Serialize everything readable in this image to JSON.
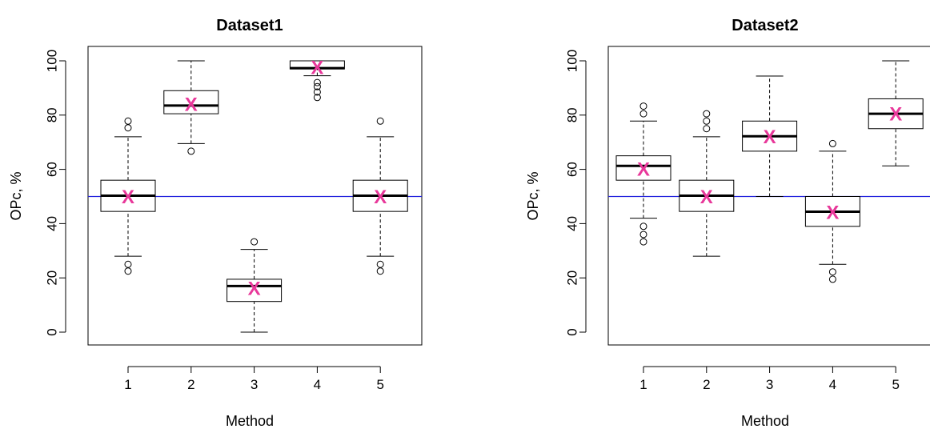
{
  "chart_data": [
    {
      "type": "boxplot",
      "title": "Dataset1",
      "xlabel": "Method",
      "ylabel": "OPc, %",
      "ylim": [
        0,
        100
      ],
      "yticks": [
        "0",
        "20",
        "40",
        "60",
        "80",
        "100"
      ],
      "categories": [
        "1",
        "2",
        "3",
        "4",
        "5"
      ],
      "reference_line": {
        "y": 50,
        "color": "#2222dd"
      },
      "mean_marker": {
        "symbol": "X",
        "color": "#e8389a"
      },
      "boxes": [
        {
          "category": "1",
          "whisker_low": 28,
          "q1": 44.5,
          "median": 50.3,
          "q3": 56,
          "whisker_high": 72,
          "mean": 49.7,
          "outliers": [
            22.5,
            25,
            75.3,
            77.8
          ]
        },
        {
          "category": "2",
          "whisker_low": 69.5,
          "q1": 80.5,
          "median": 83.5,
          "q3": 89,
          "whisker_high": 100,
          "mean": 83.8,
          "outliers": [
            66.7
          ]
        },
        {
          "category": "3",
          "whisker_low": 0,
          "q1": 11.3,
          "median": 17,
          "q3": 19.5,
          "whisker_high": 30.5,
          "mean": 16,
          "outliers": [
            33.3
          ]
        },
        {
          "category": "4",
          "whisker_low": 94.5,
          "q1": 97,
          "median": 97.3,
          "q3": 100,
          "whisker_high": 100,
          "mean": 97.3,
          "outliers": [
            86.5,
            88.5,
            90.5,
            92
          ]
        },
        {
          "category": "5",
          "whisker_low": 28,
          "q1": 44.5,
          "median": 50.3,
          "q3": 56,
          "whisker_high": 72,
          "mean": 49.7,
          "outliers": [
            22.5,
            25,
            77.8
          ]
        }
      ]
    },
    {
      "type": "boxplot",
      "title": "Dataset2",
      "xlabel": "Method",
      "ylabel": "OPc, %",
      "ylim": [
        0,
        100
      ],
      "yticks": [
        "0",
        "20",
        "40",
        "60",
        "80",
        "100"
      ],
      "categories": [
        "1",
        "2",
        "3",
        "4",
        "5"
      ],
      "reference_line": {
        "y": 50,
        "color": "#2222dd"
      },
      "mean_marker": {
        "symbol": "X",
        "color": "#e8389a"
      },
      "boxes": [
        {
          "category": "1",
          "whisker_low": 42,
          "q1": 56,
          "median": 61.3,
          "q3": 65,
          "whisker_high": 77.8,
          "mean": 59.9,
          "outliers": [
            33.3,
            36,
            39,
            80.5,
            83.3
          ]
        },
        {
          "category": "2",
          "whisker_low": 28,
          "q1": 44.5,
          "median": 50.3,
          "q3": 56,
          "whisker_high": 72,
          "mean": 49.7,
          "outliers": [
            75,
            77.8,
            80.5
          ]
        },
        {
          "category": "3",
          "whisker_low": 50,
          "q1": 66.7,
          "median": 72.2,
          "q3": 77.8,
          "whisker_high": 94.4,
          "mean": 71.8,
          "outliers": []
        },
        {
          "category": "4",
          "whisker_low": 25,
          "q1": 39,
          "median": 44.4,
          "q3": 50,
          "whisker_high": 66.7,
          "mean": 44,
          "outliers": [
            19.5,
            22.2,
            69.5
          ]
        },
        {
          "category": "5",
          "whisker_low": 61.3,
          "q1": 75,
          "median": 80.5,
          "q3": 86,
          "whisker_high": 100,
          "mean": 80.2,
          "outliers": []
        }
      ]
    }
  ]
}
